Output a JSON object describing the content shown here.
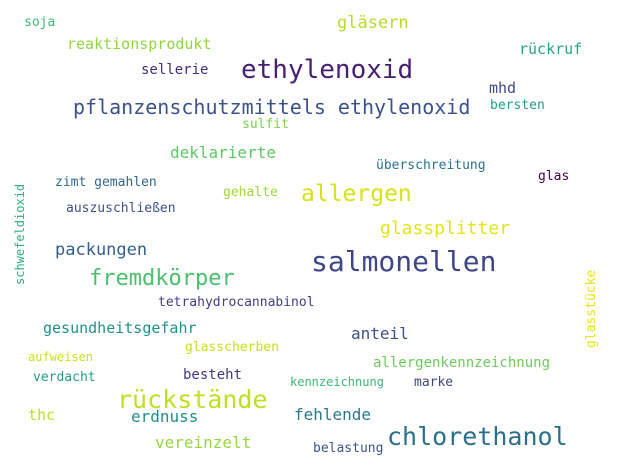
{
  "words": [
    {
      "text": "soja",
      "color": "#3bbb75"
    },
    {
      "text": "gläsern",
      "color": "#b5de2b"
    },
    {
      "text": "reaktionsprodukt",
      "color": "#90d743"
    },
    {
      "text": "rückruf",
      "color": "#26a784"
    },
    {
      "text": "sellerie",
      "color": "#472c7a"
    },
    {
      "text": "ethylenoxid",
      "color": "#482173"
    },
    {
      "text": "mhd",
      "color": "#3e4c8a"
    },
    {
      "text": "pflanzenschutzmittels ethylenoxid",
      "color": "#3b528b"
    },
    {
      "text": "bersten",
      "color": "#1fa088"
    },
    {
      "text": "sulfit",
      "color": "#7ad151"
    },
    {
      "text": "deklarierte",
      "color": "#5ec962"
    },
    {
      "text": "überschreitung",
      "color": "#2c728e"
    },
    {
      "text": "glas",
      "color": "#440154"
    },
    {
      "text": "zimt gemahlen",
      "color": "#31688e"
    },
    {
      "text": "gehalte",
      "color": "#a0da39"
    },
    {
      "text": "allergen",
      "color": "#d8e219"
    },
    {
      "text": "auszuschließen",
      "color": "#3b528b"
    },
    {
      "text": "glassplitter",
      "color": "#e5e419"
    },
    {
      "text": "packungen",
      "color": "#355f8d"
    },
    {
      "text": "salmonellen",
      "color": "#3f4788"
    },
    {
      "text": "fremdkörper",
      "color": "#4ac16d"
    },
    {
      "text": "tetrahydrocannabinol",
      "color": "#433e85"
    },
    {
      "text": "gesundheitsgefahr",
      "color": "#21918c"
    },
    {
      "text": "anteil",
      "color": "#3b528b"
    },
    {
      "text": "glasscherben",
      "color": "#c8e020"
    },
    {
      "text": "aufweisen",
      "color": "#cae11f"
    },
    {
      "text": "allergenkennzeichnung",
      "color": "#6ccd5a"
    },
    {
      "text": "verdacht",
      "color": "#1f9e89"
    },
    {
      "text": "besteht",
      "color": "#453781"
    },
    {
      "text": "kennzeichnung",
      "color": "#38b977"
    },
    {
      "text": "marke",
      "color": "#404688"
    },
    {
      "text": "rückstände",
      "color": "#c2df23"
    },
    {
      "text": "thc",
      "color": "#c0df25"
    },
    {
      "text": "erdnuss",
      "color": "#218f8d"
    },
    {
      "text": "fehlende",
      "color": "#29798e"
    },
    {
      "text": "chlorethanol",
      "color": "#2d708e"
    },
    {
      "text": "vereinzelt",
      "color": "#95d840"
    },
    {
      "text": "belastung",
      "color": "#3a548c"
    },
    {
      "text": "schwefeldioxid",
      "color": "#2db27d"
    },
    {
      "text": "glasstücke",
      "color": "#e8e419"
    }
  ]
}
